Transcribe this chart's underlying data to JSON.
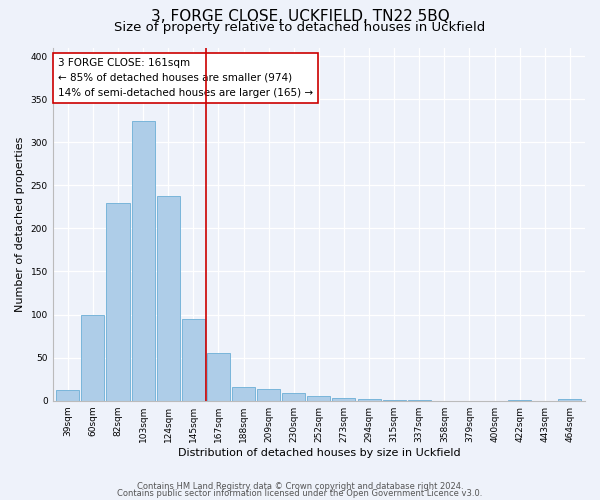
{
  "title": "3, FORGE CLOSE, UCKFIELD, TN22 5BQ",
  "subtitle": "Size of property relative to detached houses in Uckfield",
  "xlabel": "Distribution of detached houses by size in Uckfield",
  "ylabel": "Number of detached properties",
  "bar_labels": [
    "39sqm",
    "60sqm",
    "82sqm",
    "103sqm",
    "124sqm",
    "145sqm",
    "167sqm",
    "188sqm",
    "209sqm",
    "230sqm",
    "252sqm",
    "273sqm",
    "294sqm",
    "315sqm",
    "337sqm",
    "358sqm",
    "379sqm",
    "400sqm",
    "422sqm",
    "443sqm",
    "464sqm"
  ],
  "bar_values": [
    13,
    100,
    230,
    325,
    238,
    95,
    55,
    16,
    14,
    9,
    5,
    3,
    2,
    1,
    1,
    0,
    0,
    0,
    1,
    0,
    2
  ],
  "bar_color": "#aecde8",
  "bar_edge_color": "#6baed6",
  "vline_x": 5.5,
  "vline_color": "#cc0000",
  "annotation_text": "3 FORGE CLOSE: 161sqm\n← 85% of detached houses are smaller (974)\n14% of semi-detached houses are larger (165) →",
  "annotation_box_color": "#ffffff",
  "annotation_box_edge": "#cc0000",
  "ylim": [
    0,
    410
  ],
  "yticks": [
    0,
    50,
    100,
    150,
    200,
    250,
    300,
    350,
    400
  ],
  "footer_line1": "Contains HM Land Registry data © Crown copyright and database right 2024.",
  "footer_line2": "Contains public sector information licensed under the Open Government Licence v3.0.",
  "bg_color": "#eef2fa",
  "plot_bg_color": "#eef2fa",
  "title_fontsize": 11,
  "subtitle_fontsize": 9.5,
  "label_fontsize": 8,
  "tick_fontsize": 6.5,
  "annotation_fontsize": 7.5,
  "footer_fontsize": 6
}
